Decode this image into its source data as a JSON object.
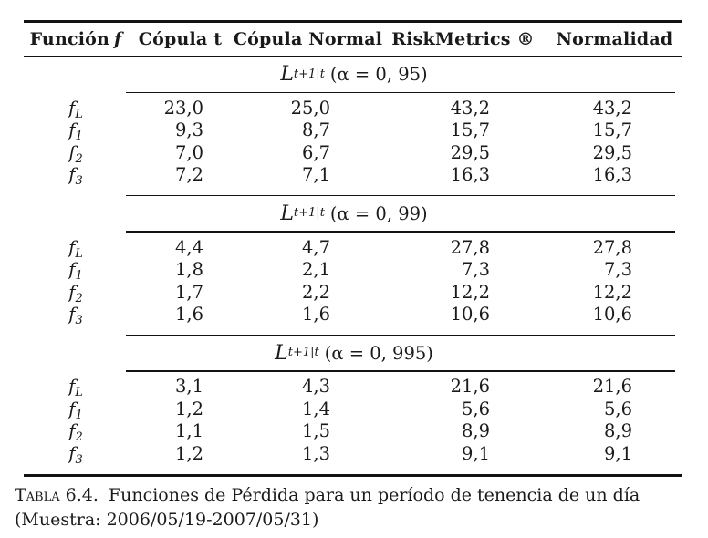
{
  "page": {
    "background": "#ffffff",
    "text_color": "#1a1a1a",
    "rule_color": "#131313"
  },
  "table": {
    "header": {
      "col1": {
        "word": "Función",
        "math": "f"
      },
      "cols": [
        "Cópula t",
        "Cópula Normal",
        "RiskMetrics ®",
        "Normalidad"
      ]
    },
    "row_label_base": "f",
    "sections": [
      {
        "title": {
          "main": "L",
          "sub": "t+1|t",
          "expr": "(α = 0, 95)"
        },
        "rows": [
          {
            "sub": "L",
            "values": [
              "23,0",
              "25,0",
              "43,2",
              "43,2"
            ]
          },
          {
            "sub": "1",
            "values": [
              "9,3",
              "8,7",
              "15,7",
              "15,7"
            ]
          },
          {
            "sub": "2",
            "values": [
              "7,0",
              "6,7",
              "29,5",
              "29,5"
            ]
          },
          {
            "sub": "3",
            "values": [
              "7,2",
              "7,1",
              "16,3",
              "16,3"
            ]
          }
        ]
      },
      {
        "title": {
          "main": "L",
          "sub": "t+1|t",
          "expr": "(α = 0, 99)"
        },
        "rows": [
          {
            "sub": "L",
            "values": [
              "4,4",
              "4,7",
              "27,8",
              "27,8"
            ]
          },
          {
            "sub": "1",
            "values": [
              "1,8",
              "2,1",
              "7,3",
              "7,3"
            ]
          },
          {
            "sub": "2",
            "values": [
              "1,7",
              "2,2",
              "12,2",
              "12,2"
            ]
          },
          {
            "sub": "3",
            "values": [
              "1,6",
              "1,6",
              "10,6",
              "10,6"
            ]
          }
        ]
      },
      {
        "title": {
          "main": "L",
          "sub": "t+1|t",
          "expr": "(α = 0, 995)"
        },
        "rows": [
          {
            "sub": "L",
            "values": [
              "3,1",
              "4,3",
              "21,6",
              "21,6"
            ]
          },
          {
            "sub": "1",
            "values": [
              "1,2",
              "1,4",
              "5,6",
              "5,6"
            ]
          },
          {
            "sub": "2",
            "values": [
              "1,1",
              "1,5",
              "8,9",
              "8,9"
            ]
          },
          {
            "sub": "3",
            "values": [
              "1,2",
              "1,3",
              "9,1",
              "9,1"
            ]
          }
        ]
      }
    ]
  },
  "caption": {
    "tag": "Tabla 6.4.",
    "line1": "Funciones de Pérdida para un período de tenencia de un día",
    "line2": "(Muestra: 2006/05/19-2007/05/31)"
  }
}
